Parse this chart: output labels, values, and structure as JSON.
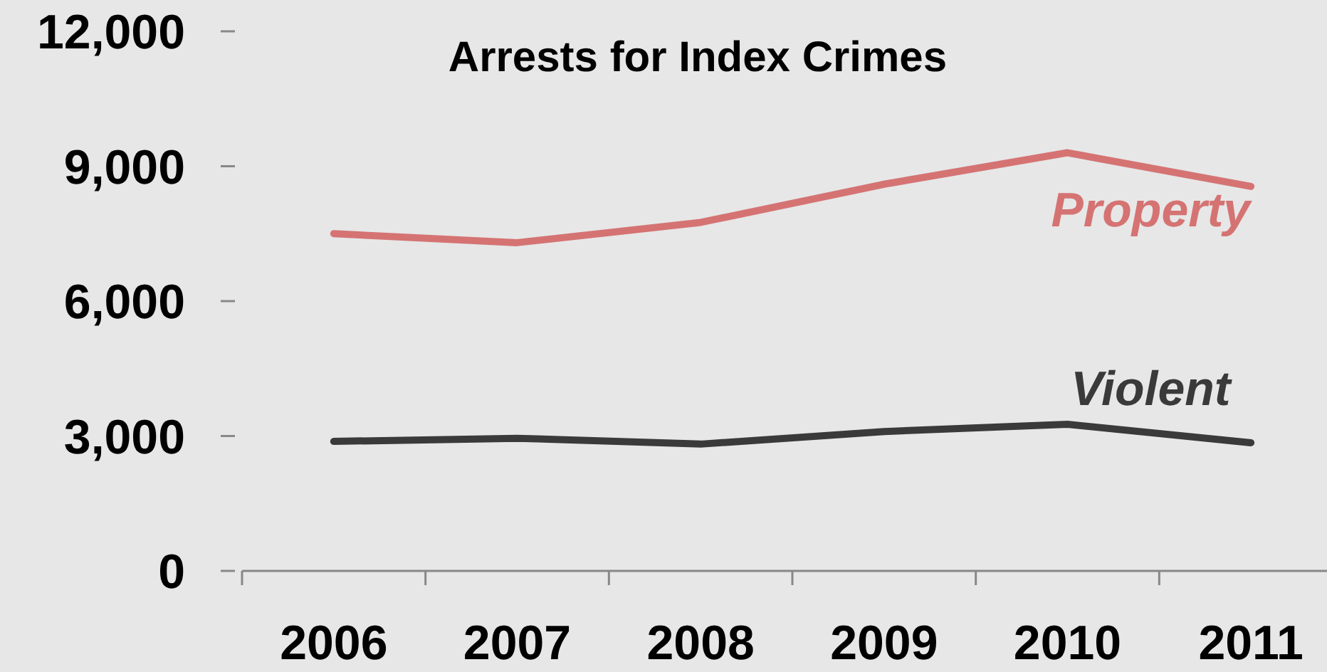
{
  "chart_data": {
    "type": "line",
    "title": "Arrests for Index Crimes",
    "categories": [
      "2006",
      "2007",
      "2008",
      "2009",
      "2010",
      "2011"
    ],
    "series": [
      {
        "name": "Property",
        "color": "#d57373",
        "values": [
          7500,
          7300,
          7750,
          8600,
          9300,
          8550
        ]
      },
      {
        "name": "Violent",
        "color": "#3a3a3a",
        "values": [
          2880,
          2950,
          2820,
          3100,
          3260,
          2850
        ]
      }
    ],
    "ylim": [
      0,
      12000
    ],
    "yticks": [
      {
        "value": 0,
        "label": "0"
      },
      {
        "value": 3000,
        "label": "3,000"
      },
      {
        "value": 6000,
        "label": "6,000"
      },
      {
        "value": 9000,
        "label": "9,000"
      },
      {
        "value": 12000,
        "label": "12,000"
      }
    ],
    "grid": false,
    "marker": "none",
    "line_style": "solid"
  }
}
